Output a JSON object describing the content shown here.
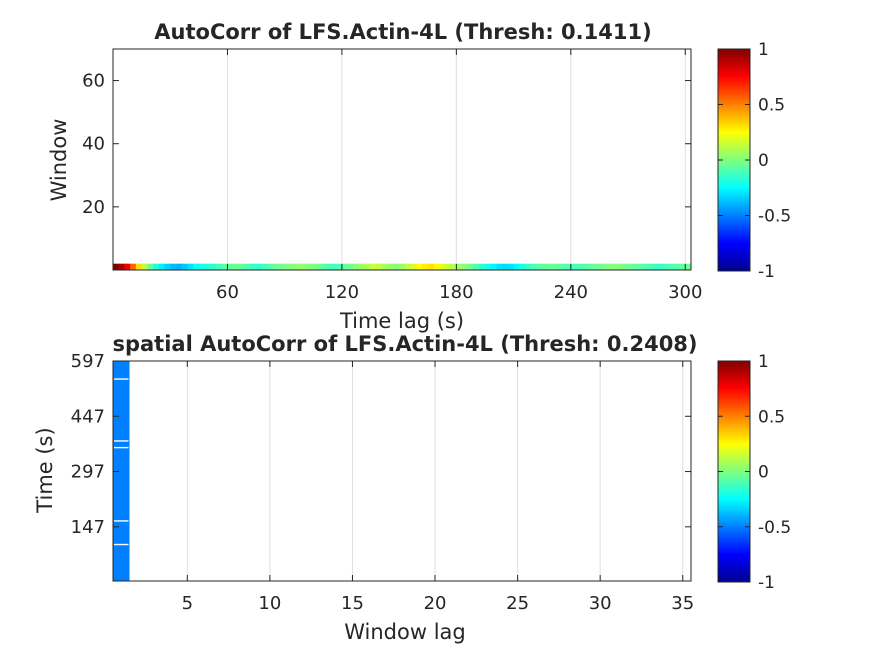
{
  "chart_data": [
    {
      "type": "heatmap",
      "title": "AutoCorr of LFS.Actin-4L (Thresh: 0.1411)",
      "xlabel": "Time lag (s)",
      "ylabel": "Window",
      "xlim": [
        0,
        303
      ],
      "ylim": [
        0,
        70
      ],
      "xticks": [
        60,
        120,
        180,
        240,
        300
      ],
      "yticks": [
        20,
        40,
        60
      ],
      "grid": "vertical",
      "colormap": "jet",
      "clim": [
        -1,
        1
      ],
      "colorbar_ticks": [
        "1",
        "0.5",
        "0",
        "-0.5",
        "-1"
      ],
      "rows": [
        {
          "y": [
            0,
            2
          ],
          "x_step": 3,
          "values": [
            1.0,
            0.92,
            0.78,
            0.55,
            0.32,
            0.12,
            -0.05,
            -0.18,
            -0.28,
            -0.34,
            -0.38,
            -0.4,
            -0.36,
            -0.3,
            -0.24,
            -0.2,
            -0.18,
            -0.16,
            -0.12,
            -0.08,
            -0.05,
            -0.04,
            -0.06,
            -0.1,
            -0.14,
            -0.16,
            -0.12,
            -0.08,
            -0.04,
            -0.02,
            0.0,
            0.02,
            0.04,
            0.03,
            0.0,
            -0.02,
            -0.06,
            -0.1,
            -0.12,
            -0.1,
            -0.06,
            -0.02,
            0.02,
            0.06,
            0.1,
            0.14,
            0.12,
            0.08,
            0.04,
            0.02,
            0.06,
            0.12,
            0.18,
            0.24,
            0.28,
            0.3,
            0.26,
            0.2,
            0.14,
            0.1,
            0.06,
            0.02,
            -0.04,
            -0.1,
            -0.16,
            -0.22,
            -0.26,
            -0.3,
            -0.32,
            -0.3,
            -0.26,
            -0.2,
            -0.14,
            -0.1,
            -0.08,
            -0.06,
            -0.04,
            -0.06,
            -0.08,
            -0.1,
            -0.12,
            -0.1,
            -0.08,
            -0.06,
            -0.04,
            -0.02,
            0.0,
            0.02,
            0.0,
            -0.02,
            -0.04,
            -0.06,
            -0.08,
            -0.1,
            -0.12,
            -0.14,
            -0.12,
            -0.1,
            -0.08,
            -0.06,
            -0.04
          ]
        }
      ]
    },
    {
      "type": "heatmap",
      "title": "spatial AutoCorr of LFS.Actin-4L (Thresh: 0.2408)",
      "xlabel": "Window lag",
      "ylabel": "Time (s)",
      "xlim": [
        0.5,
        35.5
      ],
      "ylim": [
        0,
        597
      ],
      "xticks": [
        5,
        10,
        15,
        20,
        25,
        30,
        35
      ],
      "yticks": [
        147,
        297,
        447,
        597
      ],
      "grid": "vertical",
      "colormap": "jet",
      "clim": [
        -1,
        1
      ],
      "colorbar_ticks": [
        "1",
        "0.5",
        "0",
        "-0.5",
        "-1"
      ],
      "column": {
        "x": [
          0.5,
          1.5
        ],
        "value": -0.5,
        "gaps_at_time": [
          99,
          163,
          362,
          380,
          548
        ]
      }
    }
  ]
}
